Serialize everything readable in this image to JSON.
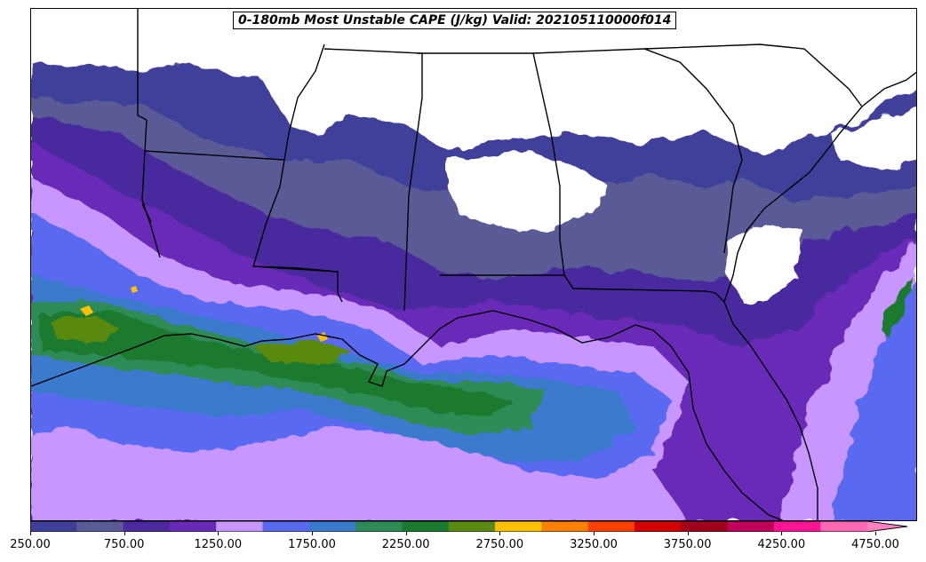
{
  "title": "0-180mb Most Unstable CAPE (J/kg) Valid: 202105110000f014",
  "colorbar": {
    "levels": [
      250,
      500,
      750,
      1000,
      1250,
      1500,
      1750,
      2000,
      2250,
      2500,
      2750,
      3000,
      3250,
      3500,
      3750,
      4000,
      4250,
      4500,
      4750,
      5000
    ],
    "colors": [
      "#3f3f9a",
      "#5a5a96",
      "#4a2a9e",
      "#6a2ab8",
      "#c896ff",
      "#5a6af0",
      "#3a7acc",
      "#2e8b57",
      "#1a7a2e",
      "#5a8a10",
      "#ffc000",
      "#ff8000",
      "#ff4000",
      "#d40000",
      "#a0001a",
      "#c0005a",
      "#ff1493",
      "#ff69b4",
      "#ff80c0"
    ],
    "tick_labels": [
      "250.00",
      "750.00",
      "1250.00",
      "1750.00",
      "2250.00",
      "2750.00",
      "3250.00",
      "3750.00",
      "4250.00",
      "4750.00"
    ],
    "extend": "max"
  },
  "map": {
    "region": "Southeastern United States and northern Gulf of Mexico",
    "zero_fill": "#ffffff",
    "boundary_color": "#000000"
  }
}
